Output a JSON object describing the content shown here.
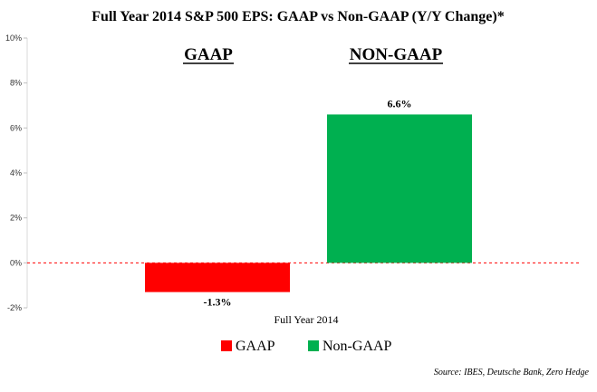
{
  "chart_data": {
    "type": "bar",
    "title": "Full Year 2014 S&P 500 EPS: GAAP vs Non-GAAP (Y/Y Change)*",
    "categories": [
      "Full Year 2014"
    ],
    "series": [
      {
        "name": "GAAP",
        "values": [
          -1.3
        ],
        "color": "#ff0000",
        "label": "-1.3%"
      },
      {
        "name": "Non-GAAP",
        "values": [
          6.6
        ],
        "color": "#00b050",
        "label": "6.6%"
      }
    ],
    "headings": [
      "GAAP",
      "NON-GAAP"
    ],
    "ylim": [
      -2,
      10
    ],
    "yticks": [
      -2,
      0,
      2,
      4,
      6,
      8,
      10
    ],
    "ytick_labels": [
      "-2%",
      "0%",
      "2%",
      "4%",
      "6%",
      "8%",
      "10%"
    ],
    "xlabel": "",
    "ylabel": "",
    "zero_line": {
      "style": "dashed",
      "color": "#ff0000"
    },
    "grid": false,
    "legend": {
      "position": "bottom",
      "entries": [
        "GAAP",
        "Non-GAAP"
      ]
    },
    "source": "Source: IBES, Deutsche Bank, Zero Hedge"
  }
}
